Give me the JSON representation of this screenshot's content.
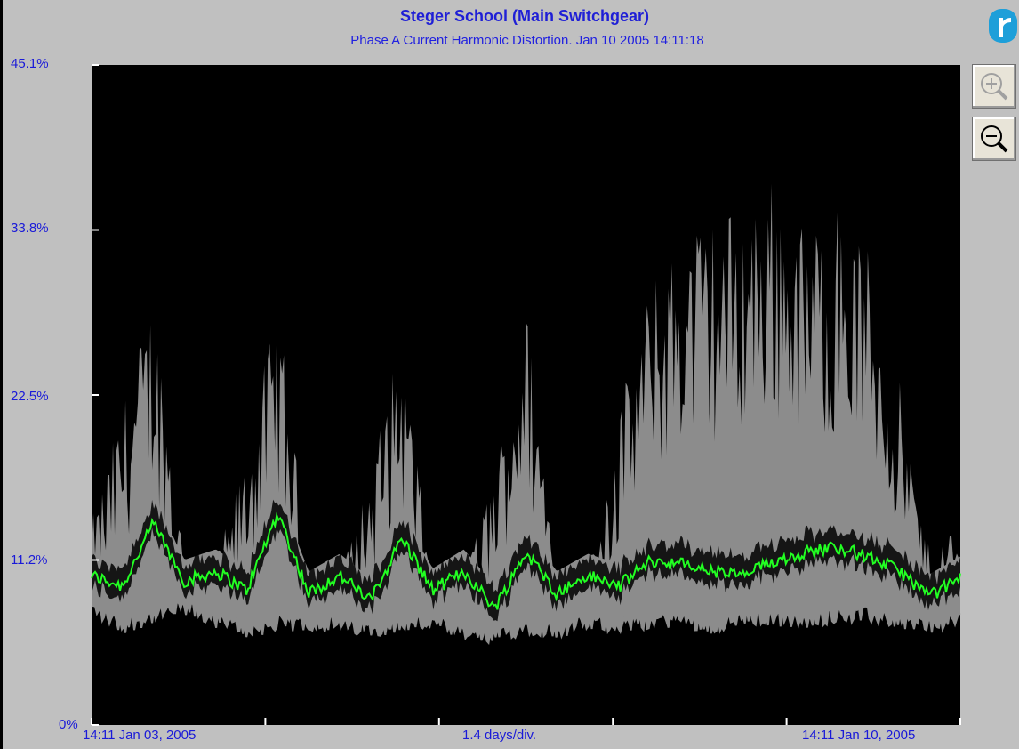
{
  "title": "Steger School (Main Switchgear)",
  "subtitle": "Phase A Current Harmonic Distortion. Jan 10 2005 14:11:18",
  "controls": {
    "zoom_in_icon": "zoom-in-magnifier",
    "zoom_out_icon": "zoom-out-magnifier",
    "logo_icon": "app-logo"
  },
  "colors": {
    "background": "#c0c0c0",
    "plot_bg": "#000000",
    "max_series": "#8c8c8c",
    "avg_series": "#22ff22",
    "min_series": "#8c8c8c",
    "text": "#1a1ad8"
  },
  "chart_data": {
    "type": "line",
    "title": "Steger School (Main Switchgear)",
    "subtitle": "Phase A Current Harmonic Distortion. Jan 10 2005 14:11:18",
    "xlabel": "1.4 days/div.",
    "x_start_label": "14:11 Jan 03, 2005",
    "x_end_label": "14:11 Jan 10, 2005",
    "x_range_days": [
      0,
      7
    ],
    "ylabel": "",
    "y_ticks": [
      "0%",
      "11.2%",
      "22.5%",
      "33.8%",
      "45.1%"
    ],
    "ylim": [
      0,
      45.1
    ],
    "grid": false,
    "x_days": [
      0,
      0.25,
      0.5,
      0.75,
      1.0,
      1.25,
      1.5,
      1.75,
      2.0,
      2.25,
      2.5,
      2.75,
      3.0,
      3.25,
      3.5,
      3.75,
      4.0,
      4.25,
      4.5,
      4.75,
      5.0,
      5.25,
      5.5,
      5.75,
      6.0,
      6.25,
      6.5,
      6.75,
      7.0
    ],
    "series": [
      {
        "role": "max",
        "values": [
          14,
          22,
          30,
          12,
          11,
          19,
          29,
          11,
          10,
          18,
          27,
          10,
          10,
          18,
          29,
          12,
          11,
          22,
          30,
          34,
          35,
          36,
          38,
          34,
          36,
          33,
          24,
          12,
          15
        ]
      },
      {
        "role": "average",
        "values": [
          10.2,
          9.5,
          13.8,
          9.8,
          10.5,
          9.2,
          14.5,
          9.0,
          10.2,
          8.5,
          12.8,
          9.2,
          10.5,
          8.0,
          11.8,
          9.0,
          10.2,
          9.5,
          11.2,
          11.0,
          10.5,
          10.2,
          11.2,
          11.8,
          12.2,
          11.5,
          10.6,
          8.8,
          10.0
        ]
      },
      {
        "role": "min",
        "values": [
          8.0,
          6.8,
          7.5,
          8.0,
          7.2,
          6.5,
          6.9,
          7.0,
          6.8,
          6.6,
          6.9,
          7.0,
          6.2,
          6.0,
          6.8,
          6.5,
          7.0,
          6.9,
          7.1,
          7.3,
          6.8,
          7.3,
          7.4,
          7.0,
          7.6,
          7.5,
          7.2,
          6.8,
          7.2
        ]
      }
    ]
  }
}
